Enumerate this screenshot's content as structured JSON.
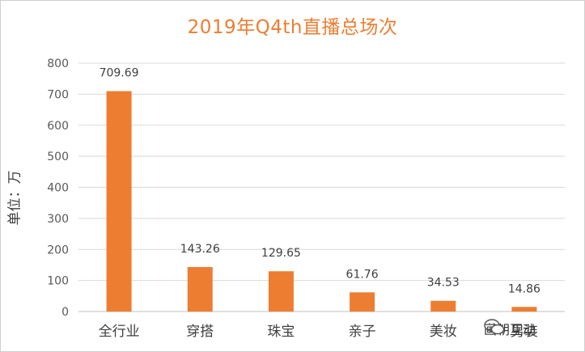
{
  "chart_data": {
    "type": "bar",
    "title": "2019年Q4th直播总场次",
    "ylabel": "单位：万",
    "xlabel": "",
    "ylim": [
      0,
      800
    ],
    "yticks": [
      0,
      100,
      200,
      300,
      400,
      500,
      600,
      700,
      800
    ],
    "grid": true,
    "categories": [
      "全行业",
      "穿搭",
      "珠宝",
      "亲子",
      "美妆",
      "男装"
    ],
    "values": [
      709.69,
      143.26,
      129.65,
      61.76,
      34.53,
      14.86
    ],
    "data_labels": [
      "709.69",
      "143.26",
      "129.65",
      "61.76",
      "34.53",
      "14.86"
    ],
    "bar_color": "#ed7d31",
    "grid_color": "#d9d9d9"
  },
  "watermark": {
    "text": "画朝互动",
    "icon": "wechat-icon"
  }
}
